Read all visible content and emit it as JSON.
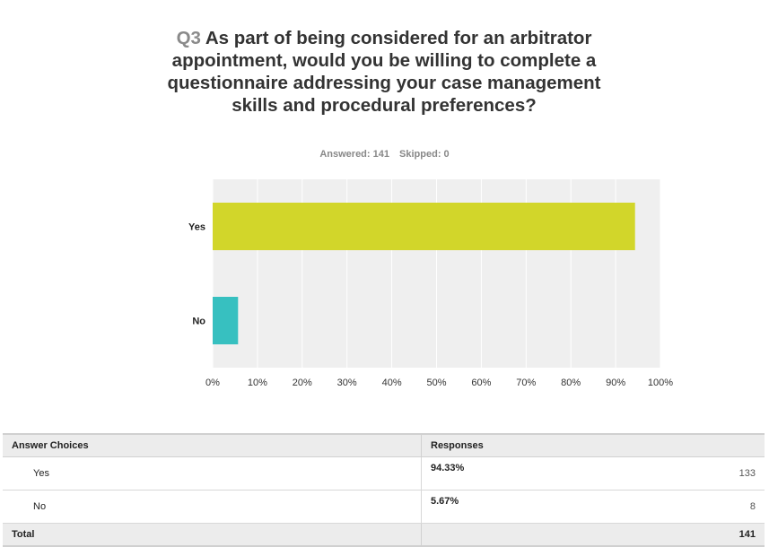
{
  "question": {
    "number": "Q3",
    "text": "As part of being considered for an arbitrator appointment, would you be willing to complete a questionnaire addressing your case management skills and procedural preferences?"
  },
  "stats": {
    "answered": "Answered: 141",
    "skipped": "Skipped: 0"
  },
  "chart_data": {
    "type": "bar",
    "orientation": "horizontal",
    "categories": [
      "Yes",
      "No"
    ],
    "values": [
      94.33,
      5.67
    ],
    "colors": [
      "#d2d62a",
      "#37c0c0"
    ],
    "xlim": [
      0,
      100
    ],
    "xticks": [
      "0%",
      "10%",
      "20%",
      "30%",
      "40%",
      "50%",
      "60%",
      "70%",
      "80%",
      "90%",
      "100%"
    ],
    "grid": true,
    "plot_background": "#efefef"
  },
  "table": {
    "headers": [
      "Answer Choices",
      "Responses"
    ],
    "rows": [
      {
        "choice": "Yes",
        "percent": "94.33%",
        "count": "133"
      },
      {
        "choice": "No",
        "percent": "5.67%",
        "count": "8"
      }
    ],
    "total_label": "Total",
    "total_count": "141"
  }
}
